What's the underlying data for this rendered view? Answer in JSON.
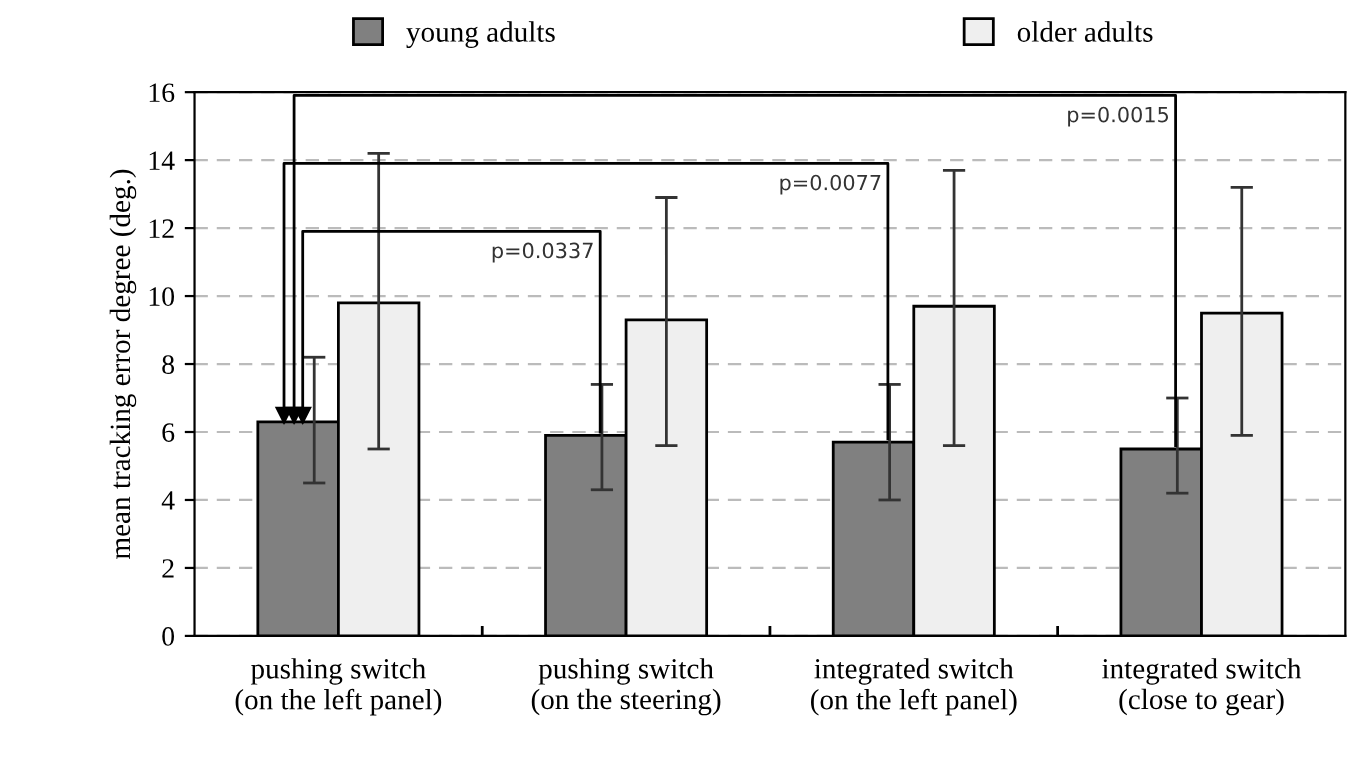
{
  "chart_data": {
    "type": "bar",
    "ylabel": "mean tracking error degree (deg.)",
    "categories": [
      "pushing switch\n(on the left panel)",
      "pushing switch\n(on the steering)",
      "integrated switch\n(on the left panel)",
      "integrated switch\n(close to gear)"
    ],
    "series": [
      {
        "name": "young adults",
        "color": "#808080",
        "values": [
          6.3,
          5.9,
          5.7,
          5.5
        ],
        "errors": [
          [
            4.5,
            8.2
          ],
          [
            4.3,
            7.4
          ],
          [
            4.0,
            7.4
          ],
          [
            4.2,
            7.0
          ]
        ]
      },
      {
        "name": "older adults",
        "color": "#efefef",
        "values": [
          9.8,
          9.3,
          9.7,
          9.5
        ],
        "errors": [
          [
            5.5,
            14.2
          ],
          [
            5.6,
            12.9
          ],
          [
            5.6,
            13.7
          ],
          [
            5.9,
            13.2
          ]
        ]
      }
    ],
    "ylim": [
      0,
      16
    ],
    "yticks": [
      0,
      2,
      4,
      6,
      8,
      10,
      12,
      14,
      16
    ],
    "grid": "y",
    "legend": "top",
    "annotations": [
      "p=0.0337",
      "p=0.0077",
      "p=0.0015"
    ]
  }
}
